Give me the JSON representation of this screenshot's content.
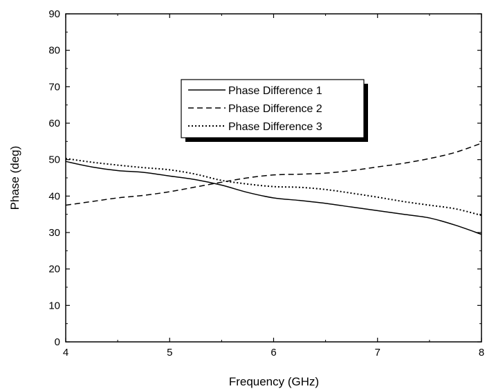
{
  "chart_data": {
    "type": "line",
    "title": "",
    "xlabel": "Frequency (GHz)",
    "ylabel": "Phase (deg)",
    "xlim": [
      4,
      8
    ],
    "ylim": [
      0,
      90
    ],
    "xticks": [
      4,
      5,
      6,
      7,
      8
    ],
    "yticks": [
      0,
      10,
      20,
      30,
      40,
      50,
      60,
      70,
      80,
      90
    ],
    "grid": false,
    "legend_placement": "center",
    "series": [
      {
        "name": "Phase Difference 1",
        "style": "solid",
        "x": [
          4.0,
          4.25,
          4.5,
          4.75,
          5.0,
          5.25,
          5.5,
          5.75,
          6.0,
          6.25,
          6.5,
          6.75,
          7.0,
          7.25,
          7.5,
          7.75,
          8.0
        ],
        "y": [
          49.5,
          48.0,
          47.0,
          46.5,
          45.5,
          44.5,
          43.0,
          41.0,
          39.5,
          38.8,
          38.0,
          37.0,
          36.0,
          35.0,
          34.0,
          32.0,
          29.5
        ]
      },
      {
        "name": "Phase Difference 2",
        "style": "dashed",
        "x": [
          4.0,
          4.25,
          4.5,
          4.75,
          5.0,
          5.25,
          5.5,
          5.75,
          6.0,
          6.25,
          6.5,
          6.75,
          7.0,
          7.25,
          7.5,
          7.75,
          8.0
        ],
        "y": [
          37.5,
          38.5,
          39.5,
          40.2,
          41.2,
          42.5,
          43.8,
          45.0,
          45.8,
          46.0,
          46.3,
          47.0,
          48.0,
          49.0,
          50.3,
          52.0,
          54.5
        ]
      },
      {
        "name": "Phase Difference 3",
        "style": "dotted",
        "x": [
          4.0,
          4.25,
          4.5,
          4.75,
          5.0,
          5.25,
          5.5,
          5.75,
          6.0,
          6.25,
          6.5,
          6.75,
          7.0,
          7.25,
          7.5,
          7.75,
          8.0
        ],
        "y": [
          50.3,
          49.3,
          48.5,
          47.8,
          47.2,
          46.0,
          44.3,
          43.3,
          42.6,
          42.4,
          41.8,
          40.8,
          39.7,
          38.5,
          37.5,
          36.5,
          34.7
        ]
      }
    ]
  }
}
